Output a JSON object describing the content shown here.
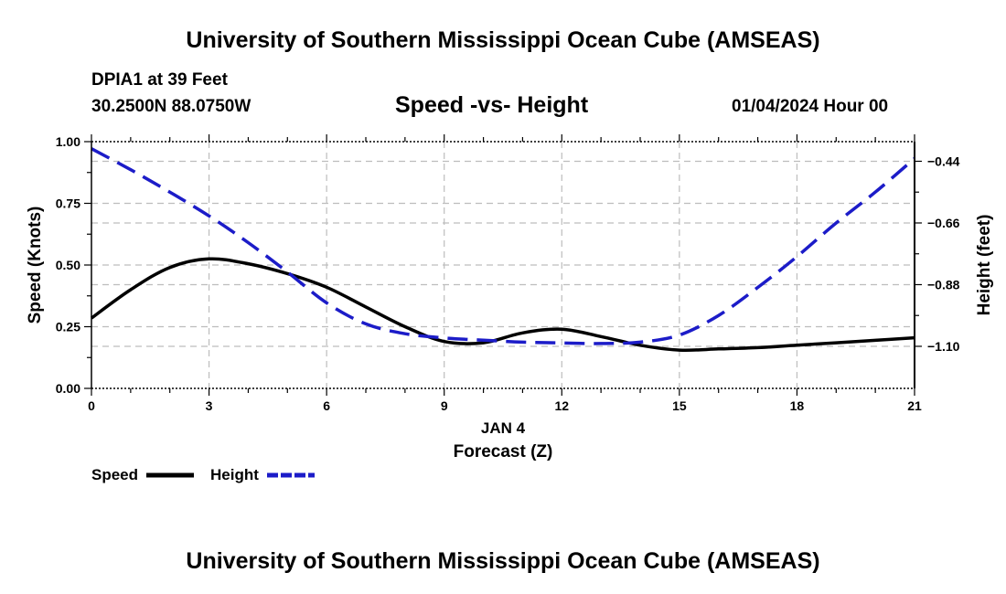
{
  "header": {
    "title_top": "University of Southern Mississippi Ocean Cube (AMSEAS)",
    "station": "DPIA1 at 39 Feet",
    "coords": "30.2500N  88.0750W",
    "chart_title": "Speed -vs- Height",
    "datetime": "01/04/2024 Hour 00",
    "title_bottom": "University of Southern Mississippi Ocean Cube (AMSEAS)"
  },
  "chart_data": {
    "type": "line",
    "title": "Speed -vs- Height",
    "xlabel": "Forecast (Z)",
    "xlabel_date": "JAN 4",
    "ylabel": "Speed (Knots)",
    "y2label": "Height (feet)",
    "xlim": [
      0,
      21
    ],
    "ylim": [
      0,
      1
    ],
    "y2lim": [
      -1.25,
      -0.37
    ],
    "x_ticks": [
      0,
      3,
      6,
      9,
      12,
      15,
      18,
      21
    ],
    "x_tick_labels": [
      "0",
      "3",
      "6",
      "9",
      "12",
      "15",
      "18",
      "21"
    ],
    "y_ticks": [
      0,
      0.25,
      0.5,
      0.75,
      1.0
    ],
    "y_tick_labels": [
      "0.00",
      "0.25",
      "0.50",
      "0.75",
      "1.00"
    ],
    "y2_ticks": [
      -1.1,
      -0.88,
      -0.66,
      -0.44
    ],
    "y2_tick_labels": [
      "−1.10",
      "−0.88",
      "−0.66",
      "−0.44"
    ],
    "grid": true,
    "legend_position": "bottom-left",
    "series": [
      {
        "name": "Speed",
        "axis": "left",
        "color": "#000000",
        "dash": "solid",
        "x": [
          0,
          1,
          2,
          3,
          4,
          5,
          6,
          7,
          8,
          9,
          10,
          11,
          12,
          13,
          14,
          15,
          16,
          17,
          18,
          19,
          20,
          21
        ],
        "values": [
          0.285,
          0.4,
          0.49,
          0.525,
          0.505,
          0.465,
          0.41,
          0.33,
          0.25,
          0.19,
          0.185,
          0.225,
          0.24,
          0.21,
          0.175,
          0.155,
          0.16,
          0.165,
          0.175,
          0.185,
          0.195,
          0.205
        ]
      },
      {
        "name": "Height",
        "axis": "right",
        "color": "#1c1cc8",
        "dash": "dashed",
        "x": [
          0,
          1,
          2,
          3,
          4,
          5,
          6,
          7,
          8,
          9,
          10,
          11,
          12,
          13,
          14,
          15,
          16,
          17,
          18,
          19,
          20,
          21
        ],
        "values": [
          -0.395,
          -0.47,
          -0.55,
          -0.635,
          -0.73,
          -0.835,
          -0.945,
          -1.02,
          -1.055,
          -1.07,
          -1.078,
          -1.085,
          -1.088,
          -1.09,
          -1.085,
          -1.06,
          -0.99,
          -0.89,
          -0.78,
          -0.66,
          -0.55,
          -0.43
        ]
      }
    ]
  }
}
